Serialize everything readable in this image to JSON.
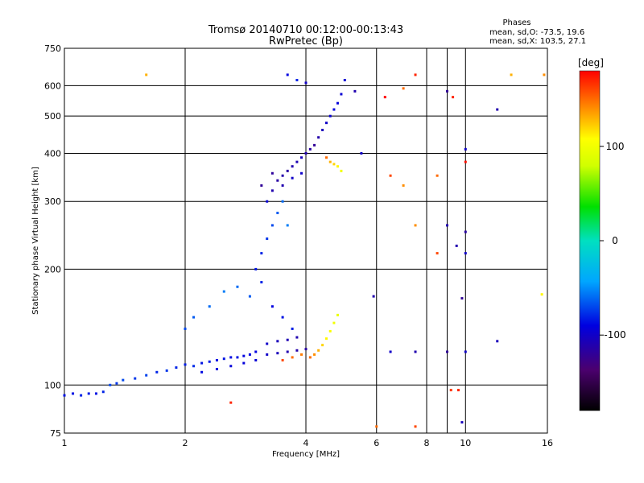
{
  "chart_data": {
    "type": "scatter",
    "title": "Tromsø 20140710 00:12:00-00:13:43",
    "subtitle": "RwPretec (Bp)",
    "xlabel": "Frequency [MHz]",
    "ylabel": "Stationary phase Virtual Height [km]",
    "x_scale": "log2",
    "y_scale": "log",
    "xlim": [
      1,
      16
    ],
    "ylim": [
      75,
      750
    ],
    "x_ticks": [
      1,
      2,
      4,
      6,
      8,
      9,
      10,
      16
    ],
    "x_tick_labels": [
      "1",
      "2",
      "4",
      "6",
      "8",
      "",
      "10",
      "16"
    ],
    "y_ticks": [
      75,
      100,
      200,
      300,
      400,
      500,
      600,
      750
    ],
    "y_tick_labels": [
      "75",
      "100",
      "200",
      "300",
      "400",
      "500",
      "600",
      "750"
    ],
    "grid": true,
    "phase_stats": {
      "title": "Phases",
      "o_line": "mean, sd,O: -73.5, 19.6",
      "x_line": "mean, sd,X: 103.5, 27.1"
    },
    "colorbar": {
      "label": "[deg]",
      "range": [
        -180,
        180
      ],
      "ticks": [
        100,
        0,
        -100
      ],
      "tick_labels": [
        "100",
        "0",
        "-100"
      ]
    },
    "series": [
      {
        "points": [
          [
            1.0,
            94,
            -85
          ],
          [
            1.05,
            95,
            -85
          ],
          [
            1.1,
            94,
            -80
          ],
          [
            1.15,
            95,
            -82
          ],
          [
            1.2,
            95,
            -85
          ],
          [
            1.25,
            96,
            -80
          ],
          [
            1.3,
            100,
            -70
          ],
          [
            1.35,
            101,
            -75
          ],
          [
            1.4,
            103,
            -70
          ],
          [
            1.5,
            104,
            -75
          ],
          [
            1.6,
            106,
            -72
          ],
          [
            1.7,
            108,
            -80
          ],
          [
            1.8,
            109,
            -75
          ],
          [
            1.9,
            111,
            -80
          ],
          [
            2.0,
            113,
            -82
          ],
          [
            2.1,
            112,
            -78
          ],
          [
            2.2,
            114,
            -85
          ],
          [
            2.3,
            115,
            -82
          ],
          [
            2.4,
            116,
            -85
          ],
          [
            2.5,
            117,
            -85
          ],
          [
            2.6,
            118,
            -88
          ],
          [
            2.7,
            118,
            -85
          ],
          [
            2.8,
            119,
            -90
          ],
          [
            2.9,
            120,
            -88
          ],
          [
            3.0,
            122,
            -90
          ],
          [
            2.2,
            108,
            -88
          ],
          [
            2.4,
            110,
            -90
          ],
          [
            2.6,
            112,
            -92
          ],
          [
            2.8,
            114,
            -92
          ],
          [
            3.0,
            116,
            -95
          ],
          [
            3.2,
            120,
            -100
          ],
          [
            3.4,
            121,
            -105
          ],
          [
            3.6,
            122,
            -110
          ],
          [
            3.8,
            123,
            -112
          ],
          [
            4.0,
            124,
            -115
          ],
          [
            3.2,
            128,
            -100
          ],
          [
            3.4,
            130,
            -105
          ],
          [
            3.6,
            131,
            -108
          ],
          [
            3.8,
            133,
            -110
          ],
          [
            4.1,
            118,
            150
          ],
          [
            4.2,
            120,
            140
          ],
          [
            4.3,
            123,
            130
          ],
          [
            4.4,
            127,
            120
          ],
          [
            4.5,
            132,
            110
          ],
          [
            4.6,
            138,
            105
          ],
          [
            4.7,
            145,
            100
          ],
          [
            4.8,
            152,
            95
          ],
          [
            3.5,
            116,
            160
          ],
          [
            3.7,
            118,
            150
          ],
          [
            3.9,
            120,
            145
          ],
          [
            2.0,
            140,
            -70
          ],
          [
            2.1,
            150,
            -65
          ],
          [
            2.3,
            160,
            -60
          ],
          [
            2.5,
            175,
            -55
          ],
          [
            2.7,
            180,
            -60
          ],
          [
            2.9,
            170,
            -65
          ],
          [
            3.1,
            185,
            -80
          ],
          [
            3.3,
            160,
            -90
          ],
          [
            3.5,
            150,
            -85
          ],
          [
            3.7,
            140,
            -82
          ],
          [
            3.0,
            200,
            -85
          ],
          [
            3.1,
            220,
            -80
          ],
          [
            3.2,
            240,
            -75
          ],
          [
            3.3,
            260,
            -70
          ],
          [
            3.4,
            280,
            -65
          ],
          [
            3.5,
            300,
            -60
          ],
          [
            3.6,
            260,
            -55
          ],
          [
            3.2,
            300,
            -95
          ],
          [
            3.3,
            320,
            -110
          ],
          [
            3.4,
            340,
            -115
          ],
          [
            3.5,
            350,
            -112
          ],
          [
            3.6,
            360,
            -115
          ],
          [
            3.7,
            370,
            -110
          ],
          [
            3.8,
            380,
            -108
          ],
          [
            3.9,
            390,
            -105
          ],
          [
            3.1,
            330,
            -120
          ],
          [
            3.3,
            355,
            -118
          ],
          [
            3.5,
            330,
            -110
          ],
          [
            3.7,
            345,
            -100
          ],
          [
            3.9,
            355,
            -98
          ],
          [
            4.0,
            400,
            -110
          ],
          [
            4.1,
            410,
            -115
          ],
          [
            4.2,
            420,
            -120
          ],
          [
            4.3,
            440,
            -112
          ],
          [
            4.4,
            460,
            -105
          ],
          [
            4.5,
            480,
            -100
          ],
          [
            4.6,
            500,
            -95
          ],
          [
            4.7,
            520,
            -90
          ],
          [
            4.8,
            540,
            -92
          ],
          [
            4.9,
            570,
            -95
          ],
          [
            4.5,
            390,
            150
          ],
          [
            4.6,
            380,
            130
          ],
          [
            4.7,
            375,
            120
          ],
          [
            4.8,
            370,
            110
          ],
          [
            4.9,
            360,
            100
          ],
          [
            3.6,
            640,
            -90
          ],
          [
            3.8,
            620,
            -80
          ],
          [
            4.0,
            610,
            -100
          ],
          [
            5.0,
            620,
            -95
          ],
          [
            5.3,
            580,
            -110
          ],
          [
            5.5,
            400,
            -100
          ],
          [
            6.3,
            560,
            180
          ],
          [
            7.0,
            590,
            150
          ],
          [
            7.5,
            640,
            170
          ],
          [
            9.0,
            580,
            -120
          ],
          [
            9.3,
            560,
            170
          ],
          [
            10.0,
            410,
            -100
          ],
          [
            10.0,
            380,
            175
          ],
          [
            12.0,
            520,
            -110
          ],
          [
            13.0,
            640,
            130
          ],
          [
            6.5,
            350,
            160
          ],
          [
            7.0,
            330,
            140
          ],
          [
            8.5,
            350,
            150
          ],
          [
            9.0,
            260,
            -110
          ],
          [
            10.0,
            250,
            -115
          ],
          [
            7.5,
            260,
            140
          ],
          [
            9.5,
            230,
            -110
          ],
          [
            10.0,
            220,
            -100
          ],
          [
            8.5,
            220,
            160
          ],
          [
            15.7,
            640,
            140
          ],
          [
            6.0,
            78,
            150
          ],
          [
            7.5,
            78,
            160
          ],
          [
            9.8,
            80,
            -105
          ],
          [
            9.2,
            97,
            165
          ],
          [
            9.6,
            97,
            170
          ],
          [
            2.6,
            90,
            170
          ],
          [
            1.6,
            640,
            130
          ],
          [
            5.9,
            170,
            -110
          ],
          [
            9.8,
            168,
            -120
          ],
          [
            12.0,
            130,
            -105
          ],
          [
            15.5,
            172,
            110
          ],
          [
            6.5,
            122,
            -100
          ],
          [
            7.5,
            122,
            -110
          ],
          [
            9.0,
            122,
            -120
          ],
          [
            10.0,
            122,
            -100
          ]
        ]
      }
    ]
  }
}
